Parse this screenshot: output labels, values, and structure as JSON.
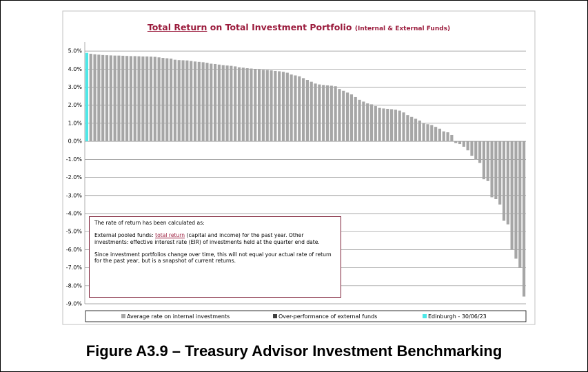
{
  "chart_data": {
    "type": "bar",
    "title": {
      "underlined": "Total Return",
      "main": "on Total Investment Portfolio",
      "note": "(Internal & External Funds)"
    },
    "ylim": [
      -9,
      5.5
    ],
    "yticks": [
      {
        "value": -9,
        "label": "-9.0%"
      },
      {
        "value": -8,
        "label": "-8.0%"
      },
      {
        "value": -7,
        "label": "-7.0%"
      },
      {
        "value": -6,
        "label": "-6.0%"
      },
      {
        "value": -5,
        "label": "-5.0%"
      },
      {
        "value": -4,
        "label": "-4.0%"
      },
      {
        "value": -3,
        "label": "-3.0%"
      },
      {
        "value": -2,
        "label": "-2.0%"
      },
      {
        "value": -1,
        "label": "-1.0%"
      },
      {
        "value": 0,
        "label": "0.0%"
      },
      {
        "value": 1,
        "label": "1.0%"
      },
      {
        "value": 2,
        "label": "2.0%"
      },
      {
        "value": 3,
        "label": "3.0%"
      },
      {
        "value": 4,
        "label": "4.0%"
      },
      {
        "value": 5,
        "label": "5.0%"
      }
    ],
    "grid": true,
    "series": [
      {
        "name": "Average rate on internal investments",
        "color": "#a6a6a6",
        "values": [
          null,
          4.85,
          4.82,
          4.8,
          4.78,
          4.77,
          4.76,
          4.75,
          4.75,
          4.74,
          4.73,
          4.72,
          4.72,
          4.71,
          4.7,
          4.7,
          4.69,
          4.68,
          4.65,
          4.62,
          4.6,
          4.58,
          4.52,
          4.5,
          4.49,
          4.48,
          4.45,
          4.42,
          4.4,
          4.38,
          4.35,
          4.3,
          4.28,
          4.25,
          4.22,
          4.2,
          4.18,
          4.15,
          4.1,
          4.08,
          4.05,
          4.03,
          4.0,
          3.98,
          3.96,
          3.95,
          3.93,
          3.9,
          3.88,
          3.85,
          3.8,
          3.7,
          3.65,
          3.6,
          3.5,
          3.4,
          3.3,
          3.2,
          3.15,
          3.12,
          3.1,
          3.08,
          3.05,
          2.9,
          2.8,
          2.7,
          2.6,
          2.45,
          2.3,
          2.2,
          2.1,
          2.05,
          1.95,
          1.85,
          1.82,
          1.8,
          1.78,
          1.75,
          1.7,
          1.6,
          1.45,
          1.35,
          1.25,
          1.15,
          1.0,
          0.95,
          0.9,
          0.8,
          0.7,
          0.55,
          0.5,
          0.35,
          -0.1,
          -0.15,
          -0.3,
          -0.5,
          -0.8,
          -1.0,
          -1.2,
          -2.1,
          -2.2,
          -3.1,
          -3.2,
          -3.5,
          -4.4,
          -4.6,
          -6.0,
          -6.5,
          -7.0,
          -8.6
        ]
      },
      {
        "name": "Over-performance of external funds",
        "color": "#404040",
        "values": [
          null,
          null,
          null,
          null,
          null,
          null,
          null,
          null,
          null,
          null,
          null,
          null,
          null,
          null,
          null,
          null,
          null,
          null,
          null,
          null,
          null,
          null,
          null,
          null,
          null,
          null,
          null,
          null,
          null,
          null,
          null,
          null,
          null,
          null,
          null,
          null,
          null,
          null,
          null,
          null,
          null,
          null,
          null,
          null,
          null,
          null,
          null,
          null,
          null,
          null,
          null,
          null,
          null,
          null,
          null,
          null,
          null,
          null,
          null,
          null,
          null,
          null,
          null,
          null,
          null,
          null,
          null,
          null,
          null,
          null,
          null,
          null,
          null,
          null,
          null,
          null,
          null,
          null,
          null,
          null,
          null,
          null,
          null,
          null,
          null,
          null,
          null,
          null,
          null,
          null,
          null,
          null,
          null,
          null,
          null,
          null,
          null,
          null,
          null,
          null,
          null,
          null,
          null,
          null,
          null,
          null,
          null,
          null,
          null,
          null
        ]
      },
      {
        "name": "Edinburgh - 30/06/23",
        "color": "#4de8e8",
        "values": [
          4.9,
          null,
          null,
          null,
          null,
          null,
          null,
          null,
          null,
          null,
          null,
          null,
          null,
          null,
          null,
          null,
          null,
          null,
          null,
          null,
          null,
          null,
          null,
          null,
          null,
          null,
          null,
          null,
          null,
          null,
          null,
          null,
          null,
          null,
          null,
          null,
          null,
          null,
          null,
          null,
          null,
          null,
          null,
          null,
          null,
          null,
          null,
          null,
          null,
          null,
          null,
          null,
          null,
          null,
          null,
          null,
          null,
          null,
          null,
          null,
          null,
          null,
          null,
          null,
          null,
          null,
          null,
          null,
          null,
          null,
          null,
          null,
          null,
          null,
          null,
          null,
          null,
          null,
          null,
          null,
          null,
          null,
          null,
          null,
          null,
          null,
          null,
          null,
          null,
          null,
          null,
          null,
          null,
          null,
          null,
          null,
          null,
          null,
          null,
          null,
          null,
          null,
          null,
          null,
          null,
          null,
          null,
          null,
          null,
          null
        ]
      }
    ],
    "annotation": [
      "The rate of return has been calculated as:",
      [
        "External pooled funds: ",
        "total return",
        " (capital and income) for the past year. Other investments: effective interest rate (EIR) of investments held at the quarter end date."
      ],
      "Since investment portfolios change over time, this will not equal your actual rate of return for the past year, but is a snapshot of current returns."
    ]
  },
  "caption": "Figure A3.9 – Treasury Advisor Investment Benchmarking"
}
